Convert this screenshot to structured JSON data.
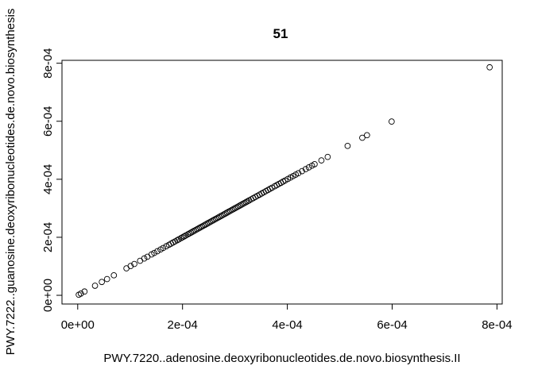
{
  "chart_data": {
    "type": "scatter",
    "title": "51",
    "xlabel": "PWY.7220..adenosine.deoxyribonucleotides.de.novo.biosynthesis.II",
    "ylabel": "PWY.7222..guanosine.deoxyribonucleotides.de.novo.biosynthesis",
    "xlim": [
      -3e-05,
      0.00081
    ],
    "ylim": [
      -3e-05,
      0.00081
    ],
    "xticks": [
      0,
      0.0002,
      0.0004,
      0.0006,
      0.0008
    ],
    "xtick_labels": [
      "0e+00",
      "2e-04",
      "4e-04",
      "6e-04",
      "8e-04"
    ],
    "yticks": [
      0,
      0.0002,
      0.0004,
      0.0006,
      0.0008
    ],
    "ytick_labels": [
      "0e+00",
      "2e-04",
      "4e-04",
      "6e-04",
      "8e-04"
    ],
    "grid": false,
    "marker": "open-circle",
    "points": [
      [
        2e-06,
        2e-06
      ],
      [
        6e-06,
        6e-06
      ],
      [
        1.3e-05,
        1.3e-05
      ],
      [
        3.3e-05,
        3.3e-05
      ],
      [
        4.6e-05,
        4.6e-05
      ],
      [
        5.6e-05,
        5.6e-05
      ],
      [
        6.9e-05,
        6.9e-05
      ],
      [
        9.3e-05,
        9.3e-05
      ],
      [
        0.000101,
        0.000101
      ],
      [
        0.000108,
        0.000108
      ],
      [
        0.000119,
        0.000119
      ],
      [
        0.000127,
        0.000127
      ],
      [
        0.000133,
        0.000133
      ],
      [
        0.000141,
        0.000141
      ],
      [
        0.000146,
        0.000146
      ],
      [
        0.000152,
        0.000152
      ],
      [
        0.000158,
        0.000158
      ],
      [
        0.000163,
        0.000163
      ],
      [
        0.000169,
        0.000169
      ],
      [
        0.000174,
        0.000174
      ],
      [
        0.000178,
        0.000178
      ],
      [
        0.000182,
        0.000182
      ],
      [
        0.000186,
        0.000186
      ],
      [
        0.00019,
        0.00019
      ],
      [
        0.000193,
        0.000193
      ],
      [
        0.000197,
        0.000197
      ],
      [
        0.0002,
        0.0002
      ],
      [
        0.000203,
        0.000203
      ],
      [
        0.000206,
        0.000206
      ],
      [
        0.00021,
        0.00021
      ],
      [
        0.000213,
        0.000213
      ],
      [
        0.000216,
        0.000216
      ],
      [
        0.000219,
        0.000219
      ],
      [
        0.000222,
        0.000222
      ],
      [
        0.000225,
        0.000225
      ],
      [
        0.000228,
        0.000228
      ],
      [
        0.000231,
        0.000231
      ],
      [
        0.000234,
        0.000234
      ],
      [
        0.000237,
        0.000237
      ],
      [
        0.00024,
        0.00024
      ],
      [
        0.000243,
        0.000243
      ],
      [
        0.000246,
        0.000246
      ],
      [
        0.000249,
        0.000249
      ],
      [
        0.000252,
        0.000252
      ],
      [
        0.000255,
        0.000255
      ],
      [
        0.000258,
        0.000258
      ],
      [
        0.000261,
        0.000261
      ],
      [
        0.000264,
        0.000264
      ],
      [
        0.000267,
        0.000267
      ],
      [
        0.00027,
        0.00027
      ],
      [
        0.000273,
        0.000273
      ],
      [
        0.000276,
        0.000276
      ],
      [
        0.000279,
        0.000279
      ],
      [
        0.000282,
        0.000282
      ],
      [
        0.000285,
        0.000285
      ],
      [
        0.000288,
        0.000288
      ],
      [
        0.000291,
        0.000291
      ],
      [
        0.000294,
        0.000294
      ],
      [
        0.000297,
        0.000297
      ],
      [
        0.0003,
        0.0003
      ],
      [
        0.000303,
        0.000303
      ],
      [
        0.000306,
        0.000306
      ],
      [
        0.000309,
        0.000309
      ],
      [
        0.000312,
        0.000312
      ],
      [
        0.000315,
        0.000315
      ],
      [
        0.000318,
        0.000318
      ],
      [
        0.000321,
        0.000321
      ],
      [
        0.000324,
        0.000324
      ],
      [
        0.000327,
        0.000327
      ],
      [
        0.000331,
        0.000331
      ],
      [
        0.000335,
        0.000335
      ],
      [
        0.000339,
        0.000339
      ],
      [
        0.000343,
        0.000343
      ],
      [
        0.000347,
        0.000347
      ],
      [
        0.000351,
        0.000351
      ],
      [
        0.000355,
        0.000355
      ],
      [
        0.000359,
        0.000359
      ],
      [
        0.000363,
        0.000363
      ],
      [
        0.000367,
        0.000367
      ],
      [
        0.000371,
        0.000371
      ],
      [
        0.000376,
        0.000376
      ],
      [
        0.00038,
        0.00038
      ],
      [
        0.000384,
        0.000384
      ],
      [
        0.000388,
        0.000388
      ],
      [
        0.000392,
        0.000392
      ],
      [
        0.000396,
        0.000396
      ],
      [
        0.000401,
        0.000401
      ],
      [
        0.000406,
        0.000406
      ],
      [
        0.000411,
        0.000411
      ],
      [
        0.000416,
        0.000416
      ],
      [
        0.000421,
        0.000421
      ],
      [
        0.000428,
        0.000428
      ],
      [
        0.000435,
        0.000435
      ],
      [
        0.000441,
        0.000441
      ],
      [
        0.000447,
        0.000447
      ],
      [
        0.000452,
        0.000452
      ],
      [
        0.000465,
        0.000465
      ],
      [
        0.000477,
        0.000477
      ],
      [
        0.000515,
        0.000515
      ],
      [
        0.000543,
        0.000543
      ],
      [
        0.000552,
        0.000552
      ],
      [
        0.000599,
        0.000599
      ],
      [
        0.000786,
        0.000786
      ]
    ]
  }
}
